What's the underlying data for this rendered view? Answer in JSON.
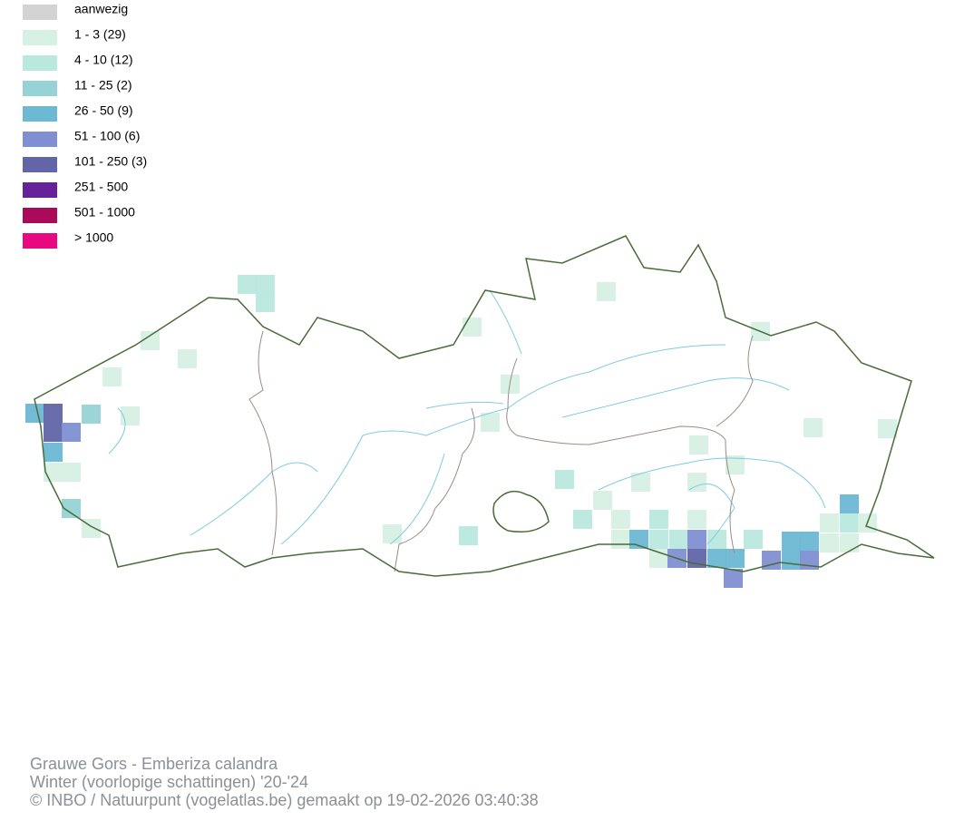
{
  "legend": {
    "items": [
      {
        "label": "aanwezig",
        "color": "#d3d3d3"
      },
      {
        "label": "1 - 3 (29)",
        "color": "#d6f0e3"
      },
      {
        "label": "4 - 10 (12)",
        "color": "#b9e8df"
      },
      {
        "label": "11 - 25 (2)",
        "color": "#97d3d6"
      },
      {
        "label": "26 - 50 (9)",
        "color": "#6db8d3"
      },
      {
        "label": "51 - 100 (6)",
        "color": "#7f8fd2"
      },
      {
        "label": "101 - 250 (3)",
        "color": "#6265a8"
      },
      {
        "label": "251 - 500",
        "color": "#66229a"
      },
      {
        "label": "501 - 1000",
        "color": "#ab0a5a"
      },
      {
        "label": "> 1000",
        "color": "#e8087f"
      }
    ]
  },
  "footer": {
    "lines": [
      "Grauwe Gors - Emberiza calandra",
      "Winter (voorlopige schattingen) '20-'24",
      "© INBO / Natuurpunt (vogelatlas.be) gemaakt op 19-02-2026 03:40:38"
    ]
  }
}
